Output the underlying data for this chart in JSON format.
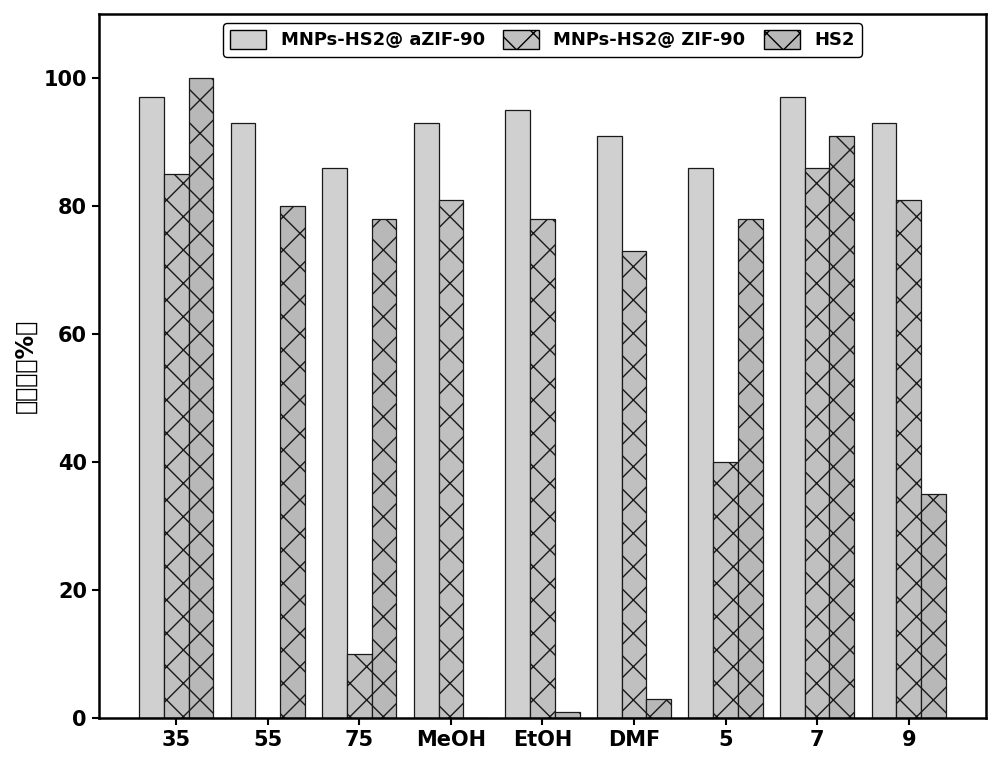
{
  "categories": [
    "35",
    "55",
    "75",
    "MeOH",
    "EtOH",
    "DMF",
    "5",
    "7",
    "9"
  ],
  "series": [
    {
      "name": "MNPs-HS2@ aZIF-90",
      "values": [
        97,
        93,
        86,
        93,
        95,
        91,
        86,
        97,
        93
      ],
      "color": "#d0d0d0",
      "hatch": ""
    },
    {
      "name": "MNPs-HS2@ ZIF-90",
      "values": [
        85,
        0,
        10,
        81,
        78,
        73,
        40,
        86,
        81
      ],
      "color": "#c0c0c0",
      "hatch": "/\\"
    },
    {
      "name": "HS2",
      "values": [
        100,
        80,
        78,
        0,
        1,
        3,
        78,
        91,
        35
      ],
      "color": "#b8b8b8",
      "hatch": "/\\"
    }
  ],
  "ylabel": "转化率（%）",
  "ylim": [
    0,
    110
  ],
  "yticks": [
    0,
    20,
    40,
    60,
    80,
    100
  ],
  "bar_width": 0.27,
  "title": "",
  "legend_fontsize": 13,
  "axis_fontsize": 17,
  "tick_fontsize": 15,
  "background_color": "#ffffff",
  "edge_color": "#1a1a1a"
}
